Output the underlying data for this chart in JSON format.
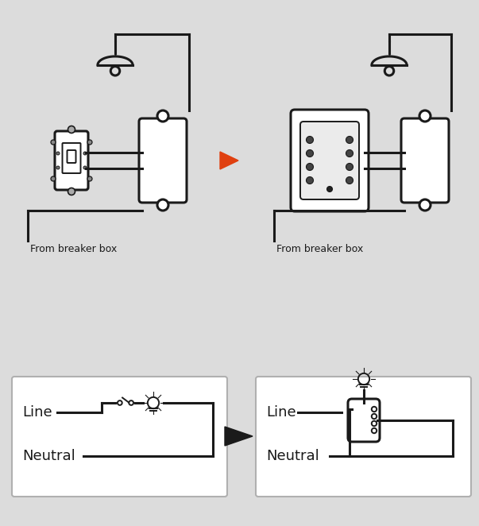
{
  "bg_color": "#dcdcdc",
  "line_color": "#1a1a1a",
  "white_color": "#ffffff",
  "orange_color": "#e04010",
  "text_color": "#1a1a1a",
  "from_breaker_box": "From breaker box",
  "line_label": "Line",
  "neutral_label": "Neutral",
  "lw_main": 2.2,
  "lw_thin": 1.4
}
